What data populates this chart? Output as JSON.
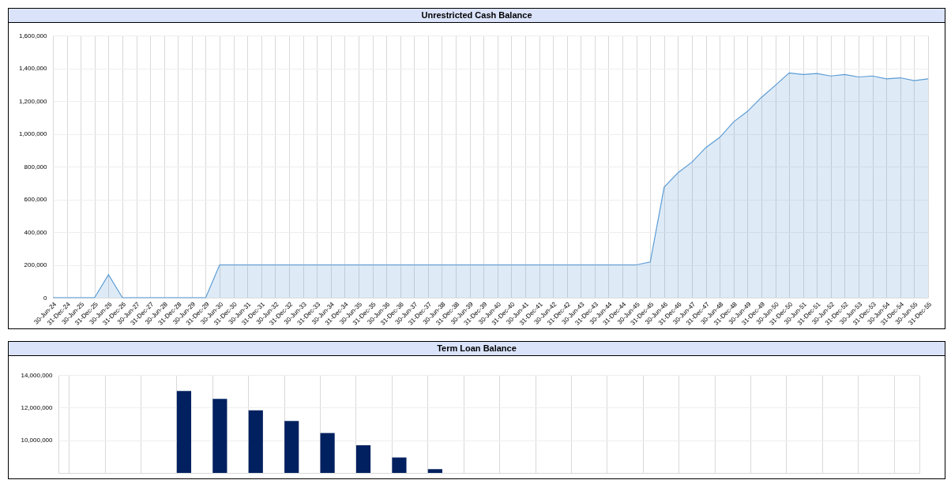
{
  "chart_data": [
    {
      "type": "area",
      "title": "Unrestricted Cash Balance",
      "categories": [
        "30-Jun-24",
        "31-Dec-24",
        "30-Jun-25",
        "31-Dec-25",
        "30-Jun-26",
        "31-Dec-26",
        "30-Jun-27",
        "31-Dec-27",
        "30-Jun-28",
        "31-Dec-28",
        "30-Jun-29",
        "31-Dec-29",
        "30-Jun-30",
        "31-Dec-30",
        "30-Jun-31",
        "31-Dec-31",
        "30-Jun-32",
        "31-Dec-32",
        "30-Jun-33",
        "31-Dec-33",
        "30-Jun-34",
        "31-Dec-34",
        "30-Jun-35",
        "31-Dec-35",
        "30-Jun-36",
        "31-Dec-36",
        "30-Jun-37",
        "31-Dec-37",
        "30-Jun-38",
        "31-Dec-38",
        "30-Jun-39",
        "31-Dec-39",
        "30-Jun-40",
        "31-Dec-40",
        "30-Jun-41",
        "31-Dec-41",
        "30-Jun-42",
        "31-Dec-42",
        "30-Jun-43",
        "31-Dec-43",
        "30-Jun-44",
        "31-Dec-44",
        "30-Jun-45",
        "31-Dec-45",
        "30-Jun-46",
        "31-Dec-46",
        "30-Jun-47",
        "31-Dec-47",
        "30-Jun-48",
        "31-Dec-48",
        "30-Jun-49",
        "31-Dec-49",
        "30-Jun-50",
        "31-Dec-50",
        "30-Jun-51",
        "31-Dec-51",
        "30-Jun-52",
        "31-Dec-52",
        "30-Jun-53",
        "31-Dec-53",
        "30-Jun-54",
        "31-Dec-54",
        "30-Jun-55",
        "31-Dec-55"
      ],
      "values": [
        0,
        0,
        0,
        0,
        140000,
        0,
        0,
        0,
        0,
        0,
        0,
        0,
        200000,
        200000,
        200000,
        200000,
        200000,
        200000,
        200000,
        200000,
        200000,
        200000,
        200000,
        200000,
        200000,
        200000,
        200000,
        200000,
        200000,
        200000,
        200000,
        200000,
        200000,
        200000,
        200000,
        200000,
        200000,
        200000,
        200000,
        200000,
        200000,
        200000,
        200000,
        218000,
        674000,
        763000,
        827000,
        916000,
        978000,
        1073000,
        1137000,
        1222000,
        1296000,
        1372000,
        1362000,
        1368000,
        1353000,
        1362000,
        1347000,
        1353000,
        1336000,
        1342000,
        1325000,
        1336000
      ],
      "color": "#5b9bd5",
      "ylim": [
        0,
        1600000
      ],
      "yticks": [
        0,
        {
          "value": 200000,
          "label": "200,000"
        },
        {
          "value": 400000,
          "label": "400,000"
        },
        {
          "value": 600000,
          "label": "600,000"
        },
        {
          "value": 800000,
          "label": "800,000"
        },
        {
          "value": 1000000,
          "label": "1,000,000"
        },
        {
          "value": 1200000,
          "label": "1,200,000"
        },
        {
          "value": 1400000,
          "label": "1,400,000"
        },
        {
          "value": 1600000,
          "label": "1,600,000"
        }
      ],
      "grid": true
    },
    {
      "type": "bar",
      "title": "Term Loan Balance",
      "categories": [
        null,
        null,
        null,
        null,
        null,
        null,
        null,
        null,
        null,
        null,
        null,
        null,
        null,
        null,
        null,
        null,
        null,
        null,
        null,
        null,
        null,
        null,
        null,
        null
      ],
      "values": [
        null,
        null,
        null,
        13020000,
        12540000,
        11830000,
        11180000,
        10440000,
        9690000,
        8940000,
        8230000,
        null,
        null,
        null,
        null,
        null,
        null,
        null,
        null,
        null,
        null,
        null,
        null,
        null
      ],
      "color": "#002060",
      "ylim": [
        8000000,
        14000000
      ],
      "yticks": [
        {
          "value": 10000000,
          "label": "10,000,000"
        },
        {
          "value": 12000000,
          "label": "12,000,000"
        },
        {
          "value": 14000000,
          "label": "14,000,000"
        }
      ],
      "grid": true,
      "tick_labels": "y"
    }
  ]
}
